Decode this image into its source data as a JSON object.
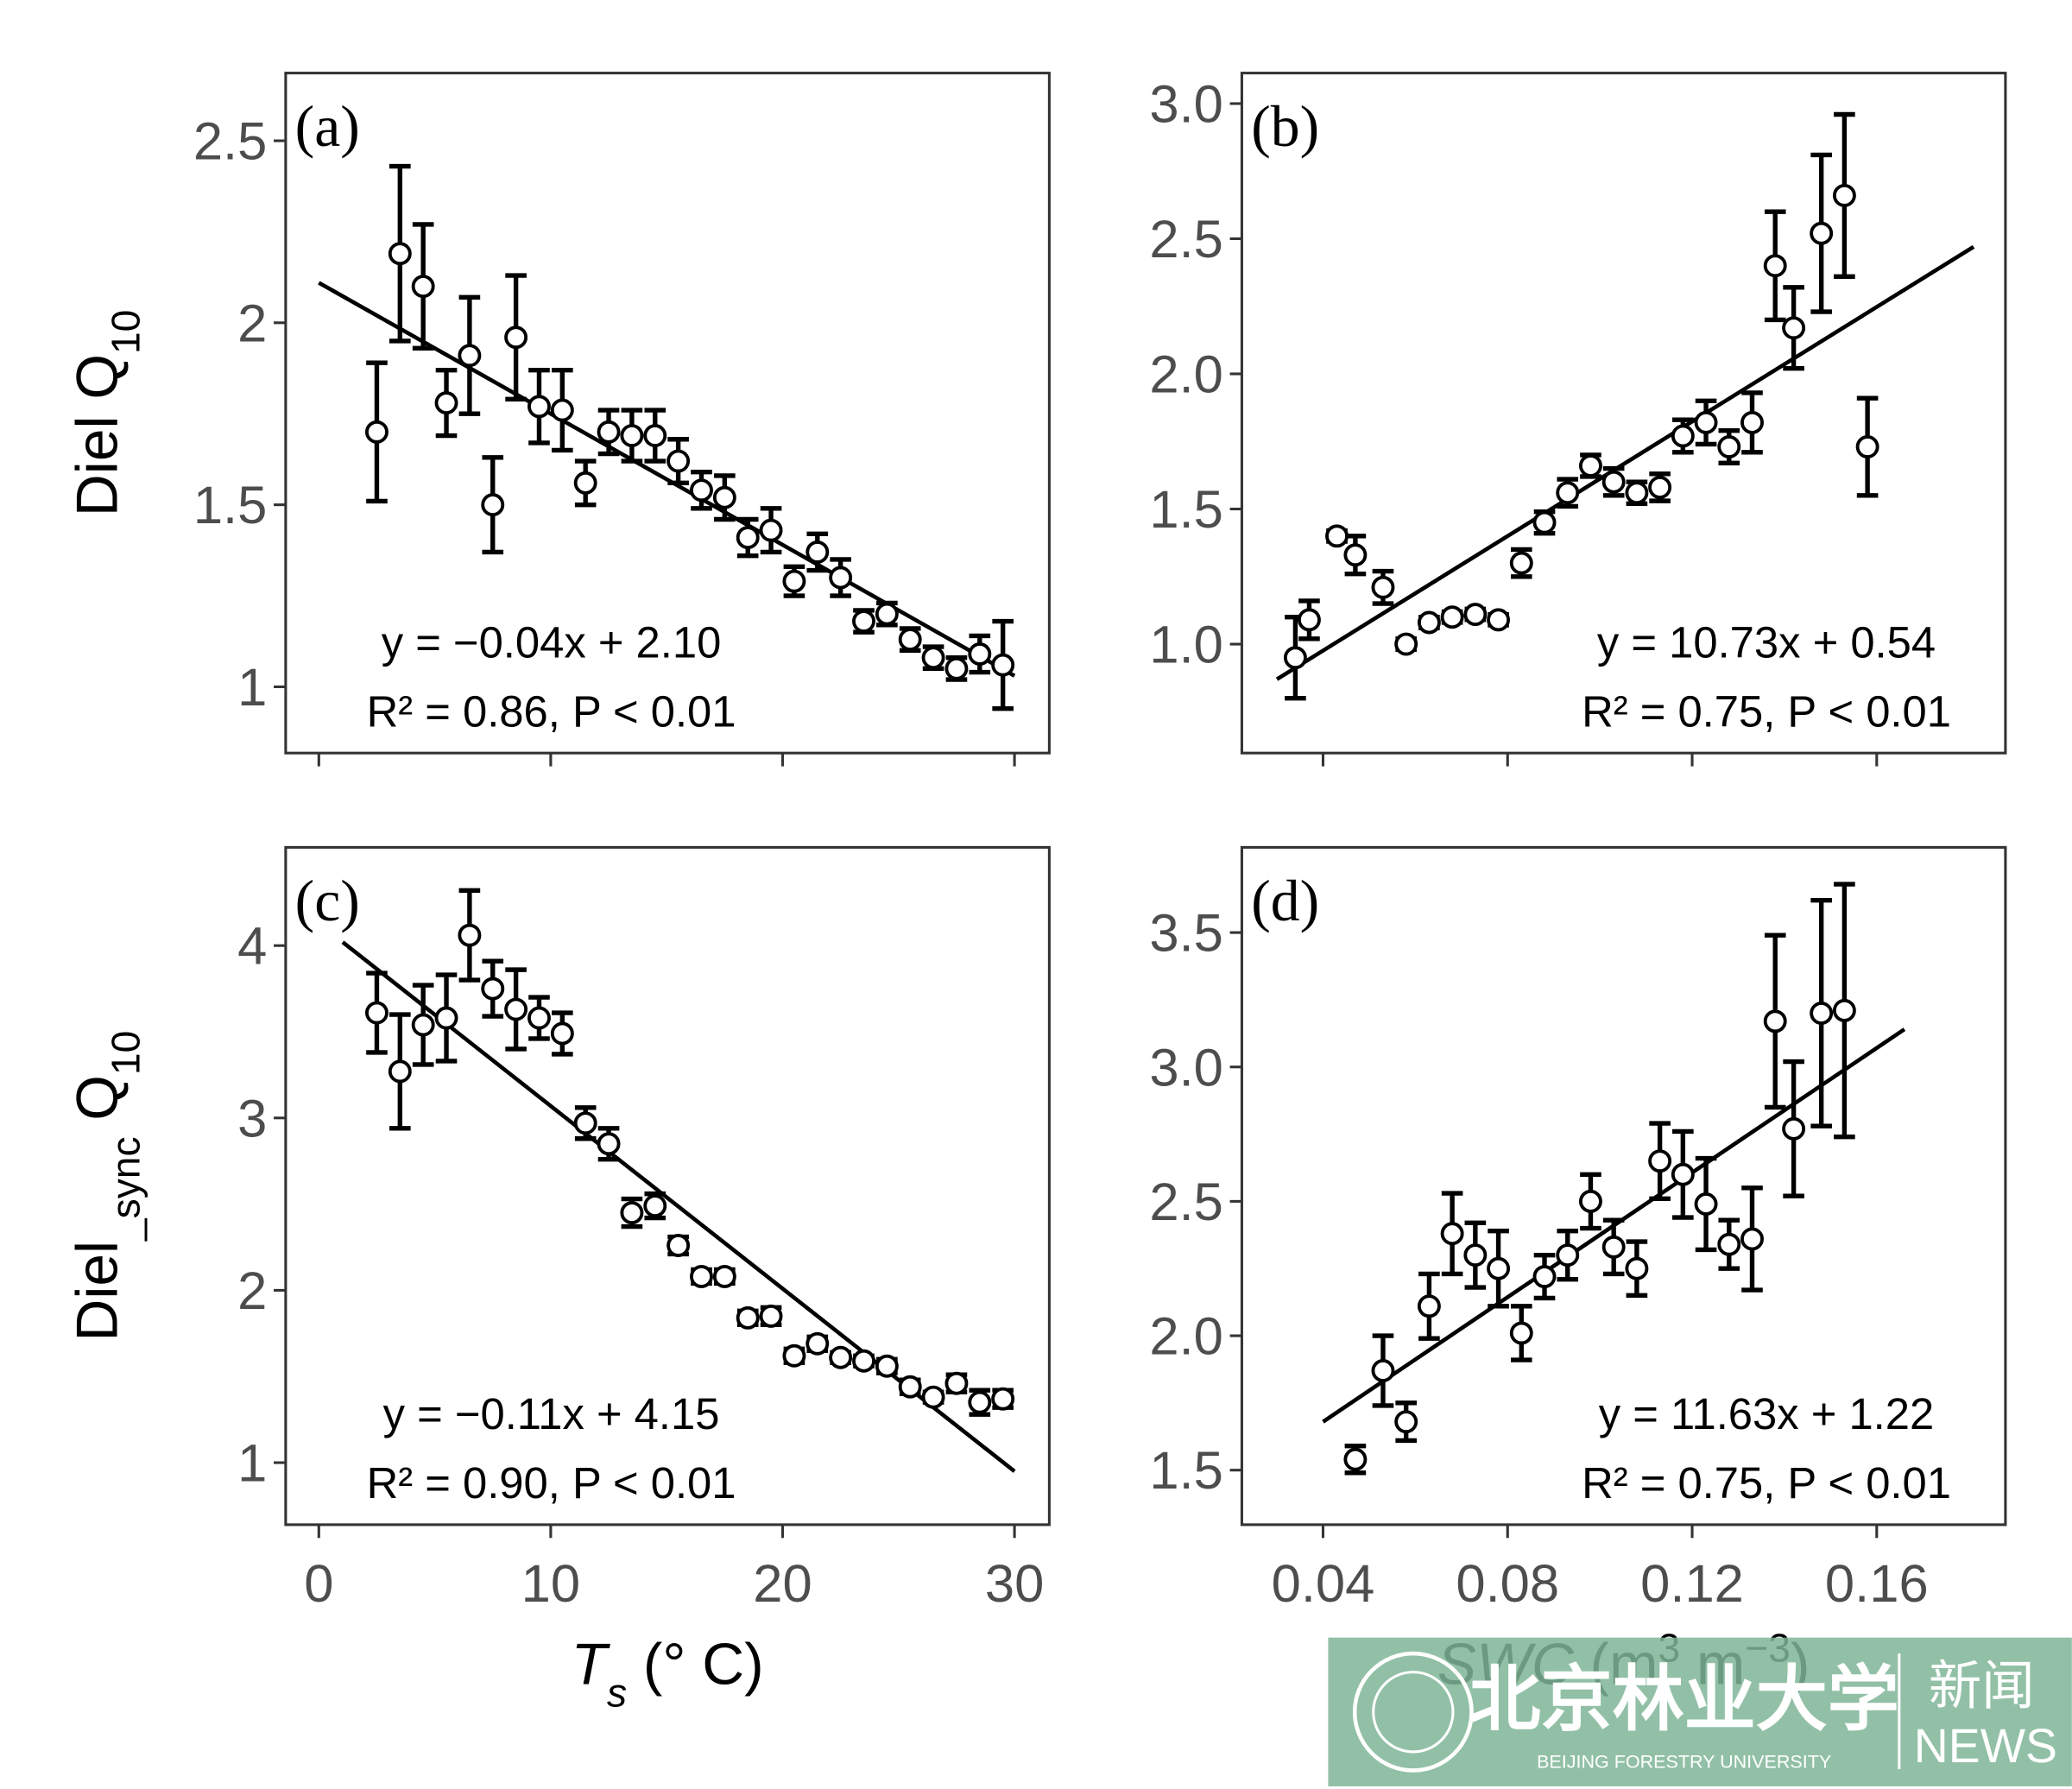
{
  "chart_data": [
    {
      "type": "scatter",
      "tag": "(a)",
      "xlim": [
        -1.43,
        31.5
      ],
      "ylim": [
        0.818,
        2.686
      ],
      "xticks": [
        0,
        10,
        20,
        30
      ],
      "show_xtick_labels": false,
      "yticks": [
        1,
        1.5,
        2,
        2.5
      ],
      "ylabel": [
        "Diel ",
        "Q",
        "10"
      ],
      "ylabel_style": [
        "",
        "",
        "sub"
      ],
      "color": "#000000",
      "x": [
        2.5,
        3.5,
        4.5,
        5.5,
        6.5,
        7.5,
        8.5,
        9.5,
        10.5,
        11.5,
        12.5,
        13.5,
        14.5,
        15.5,
        16.5,
        17.5,
        18.5,
        19.5,
        20.5,
        21.5,
        22.5,
        23.5,
        24.5,
        25.5,
        26.5,
        27.5,
        28.5,
        29.5
      ],
      "values": [
        1.7,
        2.19,
        2.1,
        1.78,
        1.91,
        1.5,
        1.96,
        1.77,
        1.76,
        1.56,
        1.7,
        1.69,
        1.69,
        1.62,
        1.54,
        1.52,
        1.41,
        1.43,
        1.29,
        1.37,
        1.3,
        1.18,
        1.2,
        1.13,
        1.08,
        1.05,
        1.09,
        1.06
      ],
      "errors": [
        0.19,
        0.24,
        0.17,
        0.09,
        0.16,
        0.13,
        0.17,
        0.1,
        0.11,
        0.06,
        0.06,
        0.07,
        0.07,
        0.06,
        0.05,
        0.06,
        0.05,
        0.06,
        0.04,
        0.05,
        0.05,
        0.03,
        0.03,
        0.03,
        0.03,
        0.03,
        0.05,
        0.12
      ],
      "fit": {
        "x": [
          0,
          30
        ],
        "y": [
          2.11,
          1.03
        ]
      },
      "equation": "y = −0.04x + 2.10",
      "stats": "R² = 0.86,  P < 0.01"
    },
    {
      "type": "scatter",
      "tag": "(b)",
      "xlim": [
        0.0224,
        0.1879
      ],
      "ylim": [
        0.597,
        3.113
      ],
      "xticks": [
        0.04,
        0.08,
        0.12,
        0.16
      ],
      "show_xtick_labels": false,
      "yticks": [
        {
          "value": 1,
          "label": "1.0"
        },
        1.5,
        {
          "value": 2,
          "label": "2.0"
        },
        2.5,
        {
          "value": 3,
          "label": "3.0"
        }
      ],
      "color": "#000000",
      "x": [
        0.034,
        0.037,
        0.043,
        0.047,
        0.053,
        0.058,
        0.063,
        0.068,
        0.073,
        0.078,
        0.083,
        0.088,
        0.093,
        0.098,
        0.103,
        0.108,
        0.113,
        0.118,
        0.123,
        0.128,
        0.133,
        0.138,
        0.142,
        0.148,
        0.153,
        0.158
      ],
      "values": [
        0.95,
        1.09,
        1.4,
        1.33,
        1.21,
        1.0,
        1.08,
        1.1,
        1.11,
        1.09,
        1.3,
        1.45,
        1.56,
        1.66,
        1.6,
        1.56,
        1.58,
        1.77,
        1.82,
        1.73,
        1.82,
        2.4,
        2.17,
        2.52,
        2.66,
        1.73
      ],
      "errors": [
        0.15,
        0.07,
        0.02,
        0.07,
        0.06,
        0.02,
        0.02,
        0.02,
        0.02,
        0.02,
        0.05,
        0.04,
        0.05,
        0.04,
        0.05,
        0.04,
        0.05,
        0.06,
        0.08,
        0.06,
        0.11,
        0.2,
        0.15,
        0.29,
        0.3,
        0.18
      ],
      "fit": {
        "x": [
          0.03,
          0.181
        ],
        "y": [
          0.87,
          2.47
        ]
      },
      "equation": "y = 10.73x + 0.54",
      "stats": "R² = 0.75,  P < 0.01"
    },
    {
      "type": "scatter",
      "tag": "(c)",
      "xlim": [
        -1.43,
        31.5
      ],
      "ylim": [
        0.64,
        4.57
      ],
      "xticks": [
        0,
        10,
        20,
        30
      ],
      "show_xtick_labels": true,
      "yticks": [
        1,
        2,
        3,
        4
      ],
      "xlabel": [
        "T",
        "s",
        " (° C)"
      ],
      "xlabel_style": [
        "italic",
        "italic sub",
        ""
      ],
      "ylabel": [
        "Diel",
        "_sync",
        " Q",
        "10"
      ],
      "ylabel_style": [
        "",
        "sub",
        "",
        "sub"
      ],
      "color": "#000000",
      "x": [
        2.5,
        3.5,
        4.5,
        5.5,
        6.5,
        7.5,
        8.5,
        9.5,
        10.5,
        11.5,
        12.5,
        13.5,
        14.5,
        15.5,
        16.5,
        17.5,
        18.5,
        19.5,
        20.5,
        21.5,
        22.5,
        23.5,
        24.5,
        25.5,
        26.5,
        27.5,
        28.5,
        29.5
      ],
      "values": [
        3.61,
        3.27,
        3.54,
        3.58,
        4.06,
        3.75,
        3.63,
        3.58,
        3.49,
        2.97,
        2.85,
        2.45,
        2.49,
        2.26,
        2.08,
        2.08,
        1.84,
        1.85,
        1.62,
        1.69,
        1.61,
        1.59,
        1.56,
        1.44,
        1.38,
        1.46,
        1.35,
        1.37
      ],
      "errors": [
        0.23,
        0.33,
        0.23,
        0.25,
        0.26,
        0.16,
        0.23,
        0.12,
        0.12,
        0.09,
        0.09,
        0.08,
        0.07,
        0.05,
        0.04,
        0.04,
        0.04,
        0.05,
        0.04,
        0.04,
        0.03,
        0.03,
        0.04,
        0.04,
        0.03,
        0.05,
        0.07,
        0.05
      ],
      "fit": {
        "x": [
          1.03,
          30
        ],
        "y": [
          4.02,
          0.95
        ]
      },
      "equation": "y = −0.11x + 4.15",
      "stats": "R² = 0.90,  P < 0.01"
    },
    {
      "type": "scatter",
      "tag": "(d)",
      "xlim": [
        0.0224,
        0.1879
      ],
      "ylim": [
        1.297,
        3.817
      ],
      "xticks": [
        0.04,
        0.08,
        0.12,
        0.16
      ],
      "show_xtick_labels": true,
      "yticks": [
        1.5,
        {
          "value": 2,
          "label": "2.0"
        },
        2.5,
        {
          "value": 3,
          "label": "3.0"
        },
        3.5
      ],
      "xlabel": [
        "SWC",
        " (m",
        "3",
        " m",
        "−3",
        ")"
      ],
      "xlabel_style": [
        "italic",
        "",
        "sup",
        "",
        "sup",
        ""
      ],
      "color": "#000000",
      "x": [
        0.047,
        0.053,
        0.058,
        0.063,
        0.068,
        0.073,
        0.078,
        0.083,
        0.088,
        0.093,
        0.098,
        0.103,
        0.108,
        0.113,
        0.118,
        0.123,
        0.128,
        0.133,
        0.138,
        0.142,
        0.148,
        0.153
      ],
      "values": [
        1.54,
        1.87,
        1.68,
        2.11,
        2.38,
        2.3,
        2.25,
        2.01,
        2.22,
        2.3,
        2.5,
        2.33,
        2.25,
        2.65,
        2.6,
        2.49,
        2.34,
        2.36,
        3.17,
        2.77,
        3.2,
        3.21
      ],
      "errors": [
        0.05,
        0.13,
        0.07,
        0.12,
        0.15,
        0.12,
        0.14,
        0.1,
        0.08,
        0.09,
        0.1,
        0.1,
        0.1,
        0.14,
        0.16,
        0.17,
        0.09,
        0.19,
        0.32,
        0.25,
        0.42,
        0.47
      ],
      "fit": {
        "x": [
          0.04,
          0.166
        ],
        "y": [
          1.68,
          3.14
        ]
      },
      "equation": "y = 11.63x + 1.22",
      "stats": "R² = 0.75,  P < 0.01"
    }
  ],
  "watermark": {
    "name_cn": "北京林业大学",
    "name_en": "BEIJING FORESTRY UNIVERSITY",
    "news_cn": "新闻",
    "news_en": "NEWS"
  }
}
